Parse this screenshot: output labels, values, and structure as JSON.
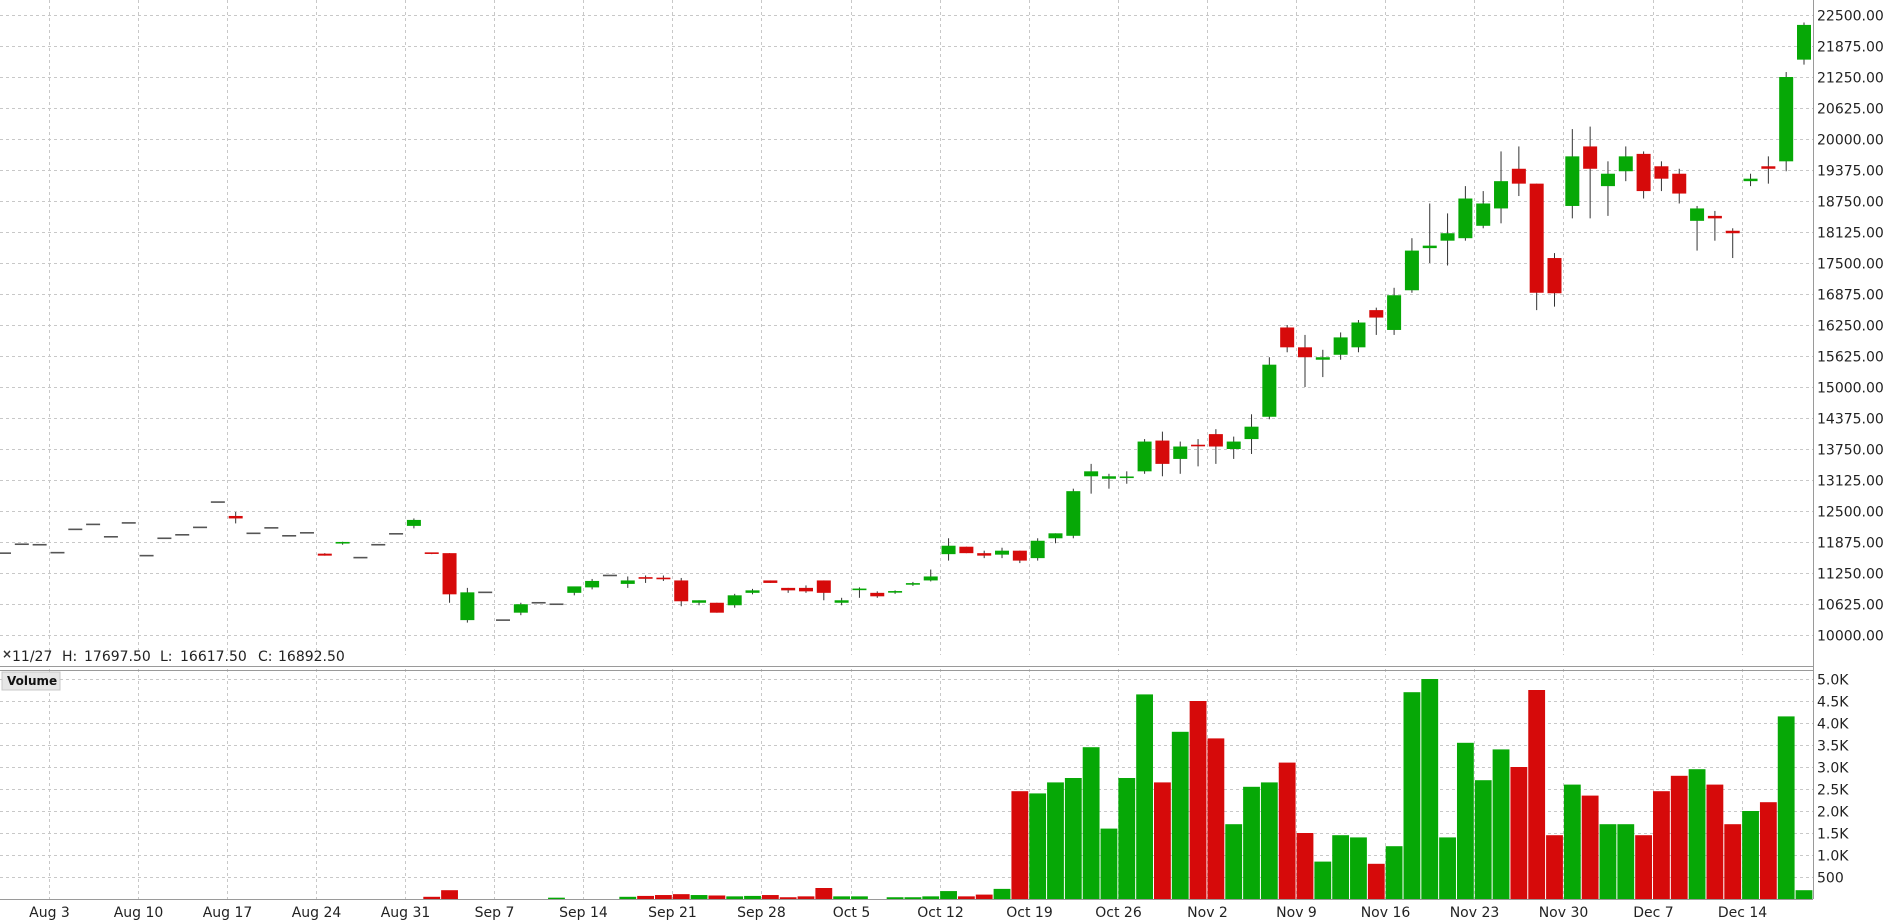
{
  "chart_data": {
    "type": "candlestick",
    "info_bar": {
      "close_icon": "×",
      "date": "11/27",
      "high_label": "H:",
      "high": "17697.50",
      "low_label": "L:",
      "low": "16617.50",
      "close_label": "C:",
      "close": "16892.50"
    },
    "volume_label": "Volume",
    "price_axis": {
      "min": 10000,
      "max": 22500,
      "ticks": [
        "10000.00",
        "10625.00",
        "11250.00",
        "11875.00",
        "12500.00",
        "13125.00",
        "13750.00",
        "14375.00",
        "15000.00",
        "15625.00",
        "16250.00",
        "16875.00",
        "17500.00",
        "18125.00",
        "18750.00",
        "19375.00",
        "20000.00",
        "20625.00",
        "21250.00",
        "21875.00",
        "22500.00"
      ]
    },
    "volume_axis": {
      "min": 0,
      "max": 5000,
      "ticks": [
        500,
        1000,
        1500,
        2000,
        2500,
        3000,
        3500,
        4000,
        4500,
        5000
      ],
      "tick_labels": [
        "500",
        "1.0K",
        "1.5K",
        "2.0K",
        "2.5K",
        "3.0K",
        "3.5K",
        "4.0K",
        "4.5K",
        "5.0K"
      ]
    },
    "x_labels": [
      "Aug 3",
      "Aug 10",
      "Aug 17",
      "Aug 24",
      "Aug 31",
      "Sep 7",
      "Sep 14",
      "Sep 21",
      "Sep 28",
      "Oct 5",
      "Oct 12",
      "Oct 19",
      "Oct 26",
      "Nov 2",
      "Nov 9",
      "Nov 16",
      "Nov 23",
      "Nov 30",
      "Dec 7",
      "Dec 14"
    ],
    "first_label_day": 2,
    "candles": [
      {
        "o": 11650,
        "h": 11650,
        "l": 11650,
        "c": 11650,
        "v": 0
      },
      {
        "o": 11830,
        "h": 11830,
        "l": 11830,
        "c": 11830,
        "v": 0
      },
      {
        "o": 11820,
        "h": 11820,
        "l": 11820,
        "c": 11820,
        "v": 0
      },
      {
        "o": 11660,
        "h": 11660,
        "l": 11660,
        "c": 11660,
        "v": 0
      },
      {
        "o": 12130,
        "h": 12130,
        "l": 12130,
        "c": 12130,
        "v": 0
      },
      {
        "o": 12230,
        "h": 12230,
        "l": 12230,
        "c": 12230,
        "v": 0
      },
      {
        "o": 11980,
        "h": 11980,
        "l": 11980,
        "c": 11980,
        "v": 0
      },
      {
        "o": 12260,
        "h": 12260,
        "l": 12260,
        "c": 12260,
        "v": 0
      },
      {
        "o": 11600,
        "h": 11600,
        "l": 11600,
        "c": 11600,
        "v": 0
      },
      {
        "o": 11950,
        "h": 11950,
        "l": 11950,
        "c": 11950,
        "v": 0
      },
      {
        "o": 12020,
        "h": 12020,
        "l": 12020,
        "c": 12020,
        "v": 0
      },
      {
        "o": 12170,
        "h": 12170,
        "l": 12170,
        "c": 12170,
        "v": 0
      },
      {
        "o": 12680,
        "h": 12680,
        "l": 12680,
        "c": 12680,
        "v": 0
      },
      {
        "o": 12400,
        "h": 12480,
        "l": 12250,
        "c": 12350,
        "v": 0
      },
      {
        "o": 12050,
        "h": 12050,
        "l": 12050,
        "c": 12050,
        "v": 0
      },
      {
        "o": 12160,
        "h": 12160,
        "l": 12160,
        "c": 12160,
        "v": 0
      },
      {
        "o": 12000,
        "h": 12000,
        "l": 12000,
        "c": 12000,
        "v": 0
      },
      {
        "o": 12060,
        "h": 12060,
        "l": 12060,
        "c": 12060,
        "v": 0
      },
      {
        "o": 11640,
        "h": 11650,
        "l": 11600,
        "c": 11600,
        "v": 0
      },
      {
        "o": 11850,
        "h": 11880,
        "l": 11820,
        "c": 11860,
        "v": 0
      },
      {
        "o": 11560,
        "h": 11560,
        "l": 11560,
        "c": 11560,
        "v": 0
      },
      {
        "o": 11820,
        "h": 11820,
        "l": 11820,
        "c": 11820,
        "v": 0
      },
      {
        "o": 12040,
        "h": 12040,
        "l": 12040,
        "c": 12040,
        "v": 0
      },
      {
        "o": 12200,
        "h": 12350,
        "l": 12150,
        "c": 12320,
        "v": 0
      },
      {
        "o": 11650,
        "h": 11650,
        "l": 11630,
        "c": 11630,
        "v": 50
      },
      {
        "o": 11650,
        "h": 11650,
        "l": 10650,
        "c": 10820,
        "v": 200
      },
      {
        "o": 10300,
        "h": 10950,
        "l": 10250,
        "c": 10860,
        "v": 0
      },
      {
        "o": 10860,
        "h": 10860,
        "l": 10860,
        "c": 10860,
        "v": 0
      },
      {
        "o": 10300,
        "h": 10300,
        "l": 10300,
        "c": 10300,
        "v": 0
      },
      {
        "o": 10450,
        "h": 10650,
        "l": 10400,
        "c": 10620,
        "v": 0
      },
      {
        "o": 10650,
        "h": 10650,
        "l": 10650,
        "c": 10650,
        "v": 0
      },
      {
        "o": 10620,
        "h": 10620,
        "l": 10620,
        "c": 10620,
        "v": 30
      },
      {
        "o": 10850,
        "h": 10950,
        "l": 10800,
        "c": 10980,
        "v": 0
      },
      {
        "o": 10960,
        "h": 11130,
        "l": 10920,
        "c": 11090,
        "v": 0
      },
      {
        "o": 11200,
        "h": 11200,
        "l": 11200,
        "c": 11200,
        "v": 0
      },
      {
        "o": 11030,
        "h": 11180,
        "l": 10950,
        "c": 11100,
        "v": 50
      },
      {
        "o": 11150,
        "h": 11200,
        "l": 11050,
        "c": 11120,
        "v": 70
      },
      {
        "o": 11140,
        "h": 11200,
        "l": 11090,
        "c": 11120,
        "v": 90
      },
      {
        "o": 11100,
        "h": 11150,
        "l": 10580,
        "c": 10680,
        "v": 110
      },
      {
        "o": 10650,
        "h": 10700,
        "l": 10600,
        "c": 10700,
        "v": 90
      },
      {
        "o": 10650,
        "h": 10650,
        "l": 10450,
        "c": 10450,
        "v": 80
      },
      {
        "o": 10600,
        "h": 10830,
        "l": 10550,
        "c": 10800,
        "v": 60
      },
      {
        "o": 10850,
        "h": 10930,
        "l": 10820,
        "c": 10900,
        "v": 70
      },
      {
        "o": 11100,
        "h": 11100,
        "l": 11050,
        "c": 11050,
        "v": 90
      },
      {
        "o": 10950,
        "h": 10950,
        "l": 10850,
        "c": 10900,
        "v": 40
      },
      {
        "o": 10950,
        "h": 11000,
        "l": 10850,
        "c": 10880,
        "v": 60
      },
      {
        "o": 11100,
        "h": 11100,
        "l": 10700,
        "c": 10850,
        "v": 250
      },
      {
        "o": 10650,
        "h": 10750,
        "l": 10600,
        "c": 10700,
        "v": 60
      },
      {
        "o": 10920,
        "h": 10960,
        "l": 10750,
        "c": 10920,
        "v": 60
      },
      {
        "o": 10850,
        "h": 10880,
        "l": 10750,
        "c": 10780,
        "v": 0
      },
      {
        "o": 10840,
        "h": 10900,
        "l": 10830,
        "c": 10870,
        "v": 40
      },
      {
        "o": 11030,
        "h": 11070,
        "l": 10990,
        "c": 11030,
        "v": 40
      },
      {
        "o": 11100,
        "h": 11320,
        "l": 11080,
        "c": 11180,
        "v": 60
      },
      {
        "o": 11630,
        "h": 11950,
        "l": 11500,
        "c": 11800,
        "v": 180
      },
      {
        "o": 11780,
        "h": 11780,
        "l": 11650,
        "c": 11650,
        "v": 60
      },
      {
        "o": 11650,
        "h": 11700,
        "l": 11550,
        "c": 11600,
        "v": 100
      },
      {
        "o": 11620,
        "h": 11760,
        "l": 11550,
        "c": 11700,
        "v": 230
      },
      {
        "o": 11700,
        "h": 11700,
        "l": 11450,
        "c": 11500,
        "v": 2450
      },
      {
        "o": 11550,
        "h": 11950,
        "l": 11500,
        "c": 11900,
        "v": 2400
      },
      {
        "o": 11950,
        "h": 12050,
        "l": 11850,
        "c": 12050,
        "v": 2650
      },
      {
        "o": 12000,
        "h": 12950,
        "l": 11950,
        "c": 12900,
        "v": 2750
      },
      {
        "o": 13200,
        "h": 13450,
        "l": 12850,
        "c": 13300,
        "v": 3450
      },
      {
        "o": 13150,
        "h": 13250,
        "l": 12950,
        "c": 13200,
        "v": 1600
      },
      {
        "o": 13180,
        "h": 13300,
        "l": 13050,
        "c": 13180,
        "v": 2750
      },
      {
        "o": 13300,
        "h": 13950,
        "l": 13250,
        "c": 13900,
        "v": 4650
      },
      {
        "o": 13920,
        "h": 14100,
        "l": 13200,
        "c": 13450,
        "v": 2650
      },
      {
        "o": 13550,
        "h": 13900,
        "l": 13250,
        "c": 13800,
        "v": 3800
      },
      {
        "o": 13820,
        "h": 13950,
        "l": 13400,
        "c": 13800,
        "v": 4500
      },
      {
        "o": 14050,
        "h": 14150,
        "l": 13450,
        "c": 13800,
        "v": 3650
      },
      {
        "o": 13750,
        "h": 14000,
        "l": 13550,
        "c": 13900,
        "v": 1700
      },
      {
        "o": 13950,
        "h": 14450,
        "l": 13650,
        "c": 14200,
        "v": 2550
      },
      {
        "o": 14400,
        "h": 15600,
        "l": 14350,
        "c": 15450,
        "v": 2650
      },
      {
        "o": 16200,
        "h": 16250,
        "l": 15700,
        "c": 15800,
        "v": 3100
      },
      {
        "o": 15800,
        "h": 16050,
        "l": 15000,
        "c": 15600,
        "v": 1500
      },
      {
        "o": 15550,
        "h": 15750,
        "l": 15200,
        "c": 15600,
        "v": 850
      },
      {
        "o": 15650,
        "h": 16100,
        "l": 15550,
        "c": 16000,
        "v": 1450
      },
      {
        "o": 15800,
        "h": 16350,
        "l": 15700,
        "c": 16300,
        "v": 1400
      },
      {
        "o": 16550,
        "h": 16600,
        "l": 16050,
        "c": 16400,
        "v": 800
      },
      {
        "o": 16150,
        "h": 17000,
        "l": 16050,
        "c": 16850,
        "v": 1200
      },
      {
        "o": 16950,
        "h": 18000,
        "l": 16900,
        "c": 17750,
        "v": 4700
      },
      {
        "o": 17800,
        "h": 18700,
        "l": 17500,
        "c": 17850,
        "v": 5000
      },
      {
        "o": 17950,
        "h": 18500,
        "l": 17450,
        "c": 18100,
        "v": 1400
      },
      {
        "o": 18000,
        "h": 19050,
        "l": 17950,
        "c": 18800,
        "v": 3550
      },
      {
        "o": 18250,
        "h": 18950,
        "l": 18200,
        "c": 18700,
        "v": 2700
      },
      {
        "o": 18600,
        "h": 19750,
        "l": 18300,
        "c": 19150,
        "v": 3400
      },
      {
        "o": 19400,
        "h": 19850,
        "l": 18850,
        "c": 19100,
        "v": 3000
      },
      {
        "o": 19100,
        "h": 19100,
        "l": 16550,
        "c": 16900,
        "v": 4750
      },
      {
        "o": 17600,
        "h": 17700,
        "l": 16620,
        "c": 16890,
        "v": 1450
      },
      {
        "o": 18650,
        "h": 20200,
        "l": 18400,
        "c": 19650,
        "v": 2600
      },
      {
        "o": 19850,
        "h": 20250,
        "l": 18400,
        "c": 19400,
        "v": 2350
      },
      {
        "o": 19050,
        "h": 19550,
        "l": 18450,
        "c": 19300,
        "v": 1700
      },
      {
        "o": 19350,
        "h": 19850,
        "l": 19150,
        "c": 19650,
        "v": 1700
      },
      {
        "o": 19700,
        "h": 19750,
        "l": 18800,
        "c": 18950,
        "v": 1450
      },
      {
        "o": 19450,
        "h": 19550,
        "l": 18950,
        "c": 19200,
        "v": 2450
      },
      {
        "o": 19300,
        "h": 19400,
        "l": 18700,
        "c": 18900,
        "v": 2800
      },
      {
        "o": 18350,
        "h": 18650,
        "l": 17750,
        "c": 18600,
        "v": 2950
      },
      {
        "o": 18450,
        "h": 18550,
        "l": 17950,
        "c": 18400,
        "v": 2600
      },
      {
        "o": 18150,
        "h": 18200,
        "l": 17600,
        "c": 18100,
        "v": 1700
      },
      {
        "o": 19150,
        "h": 19300,
        "l": 19050,
        "c": 19200,
        "v": 2000
      },
      {
        "o": 19450,
        "h": 19650,
        "l": 19100,
        "c": 19400,
        "v": 2200
      },
      {
        "o": 19550,
        "h": 21350,
        "l": 19350,
        "c": 21250,
        "v": 4150
      },
      {
        "o": 21600,
        "h": 22350,
        "l": 21500,
        "c": 22300,
        "v": 200
      }
    ],
    "colors": {
      "up": "#06a806",
      "down": "#d60a0a",
      "neutral": "#555555"
    }
  }
}
